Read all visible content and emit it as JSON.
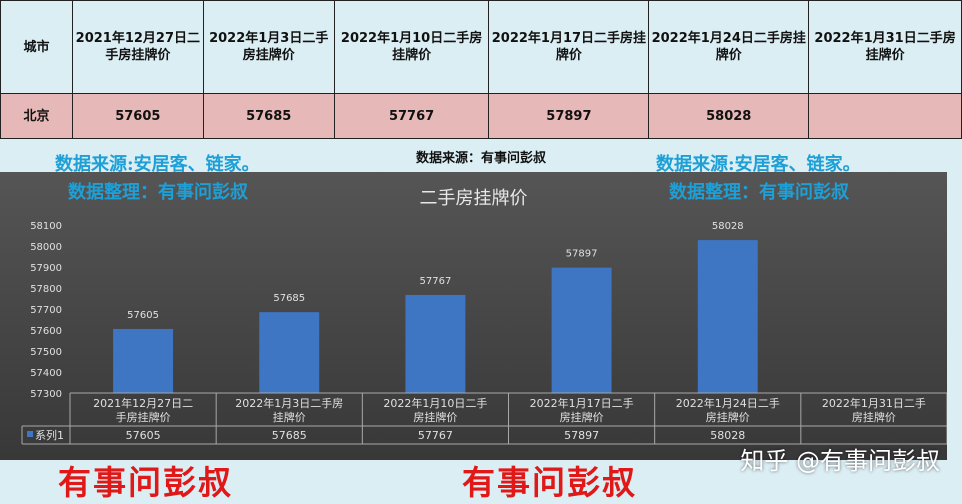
{
  "table": {
    "header": [
      "城市",
      "2021年12月27日二手房挂牌价",
      "2022年1月3日二手房挂牌价",
      "2022年1月10日二手房挂牌价",
      "2022年1月17日二手房挂牌价",
      "2022年1月24日二手房挂牌价",
      "2022年1月31日二手房挂牌价"
    ],
    "rows": [
      [
        "北京",
        "57605",
        "57685",
        "57767",
        "57897",
        "58028",
        ""
      ]
    ]
  },
  "overlay": {
    "source_line": "数据来源:安居客、链家。",
    "organize_line": "数据整理：有事问彭叔",
    "center_source": "数据来源：有事问彭叔",
    "watermark": "有事问彭叔",
    "zhihu": "知乎 @有事问彭叔"
  },
  "chart_data": {
    "type": "bar",
    "title": "二手房挂牌价",
    "categories": [
      "2021年12月27日二手房挂牌价",
      "2022年1月3日二手房挂牌价",
      "2022年1月10日二手房挂牌价",
      "2022年1月17日二手房挂牌价",
      "2022年1月24日二手房挂牌价",
      "2022年1月31日二手房挂牌价"
    ],
    "series": [
      {
        "name": "系列1",
        "values": [
          57605,
          57685,
          57767,
          57897,
          58028,
          null
        ]
      }
    ],
    "ylim": [
      57300,
      58100
    ],
    "yticks": [
      57300,
      57400,
      57500,
      57600,
      57700,
      57800,
      57900,
      58000,
      58100
    ],
    "data_table": true,
    "grid": false,
    "colors": {
      "bar": "#3f76c4",
      "text": "#e0e0e0"
    }
  }
}
